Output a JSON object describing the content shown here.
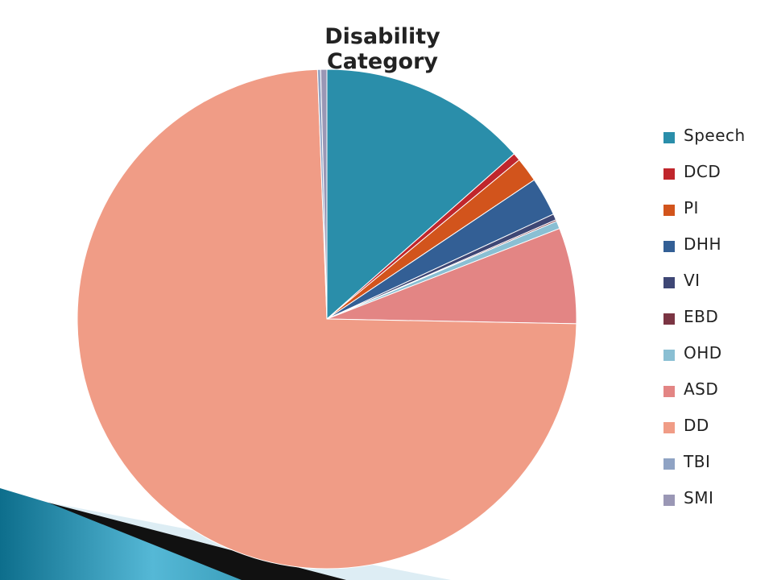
{
  "chart_data": {
    "type": "pie",
    "title": "Disability Category",
    "legend_position": "right",
    "series": [
      {
        "name": "Speech",
        "value": 13.5,
        "color": "#2A8EAA"
      },
      {
        "name": "DCD",
        "value": 0.5,
        "color": "#C0262C"
      },
      {
        "name": "PI",
        "value": 1.6,
        "color": "#D2541C"
      },
      {
        "name": "DHH",
        "value": 2.5,
        "color": "#335F95"
      },
      {
        "name": "VI",
        "value": 0.4,
        "color": "#3E4775"
      },
      {
        "name": "EBD",
        "value": 0.1,
        "color": "#7B3543"
      },
      {
        "name": "OHD",
        "value": 0.5,
        "color": "#8ABFD3"
      },
      {
        "name": "ASD",
        "value": 6.2,
        "color": "#E38584"
      },
      {
        "name": "DD",
        "value": 74.1,
        "color": "#F09C86"
      },
      {
        "name": "TBI",
        "value": 0.2,
        "color": "#8FA3C4"
      },
      {
        "name": "SMI",
        "value": 0.4,
        "color": "#9A97B5"
      }
    ]
  },
  "icons": {
    "decorative_corner": "teal-stripe-corner-shape"
  },
  "colors": {
    "deco_teal_dark": "#0D6E8C",
    "deco_teal_light": "#55B8D6",
    "deco_black": "#111111",
    "deco_pale": "#DDEDF4"
  }
}
